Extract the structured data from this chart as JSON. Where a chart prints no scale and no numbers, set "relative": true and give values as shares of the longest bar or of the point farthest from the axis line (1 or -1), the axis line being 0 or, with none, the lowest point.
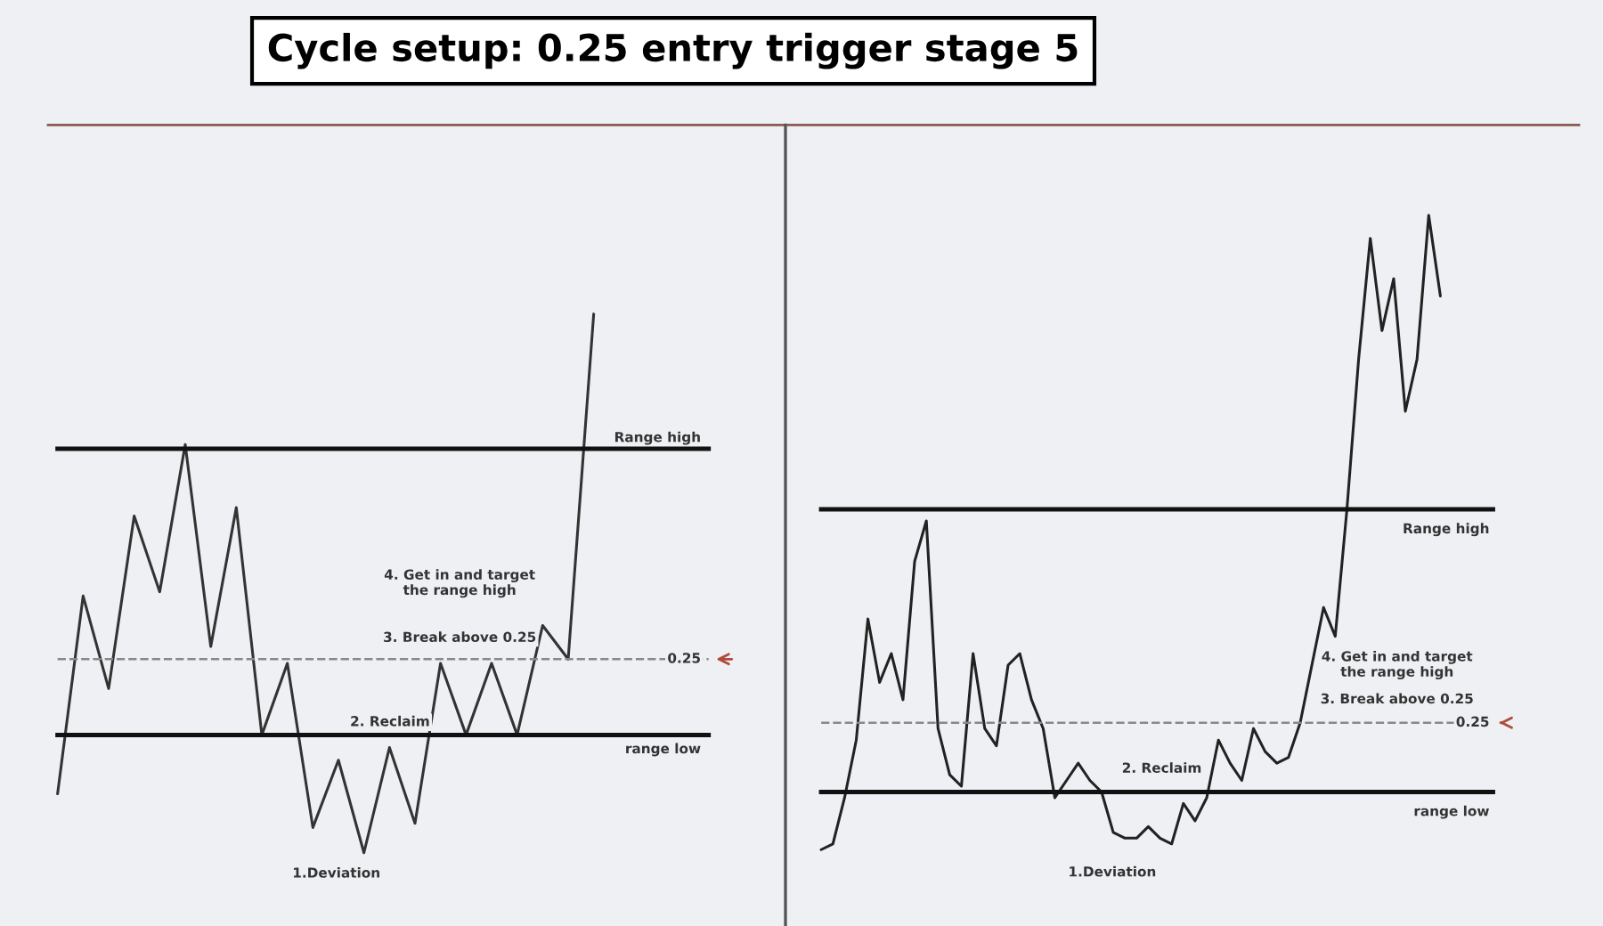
{
  "chart_data": [
    {
      "type": "line",
      "title": "Cycle setup: 0.25 entry trigger stage 5",
      "relative": true,
      "tick_labels": false,
      "marker": "none",
      "line_style": "solid",
      "categories": [
        null,
        null,
        null,
        null,
        null,
        null,
        null,
        null,
        null,
        null,
        null,
        null,
        null,
        null,
        null,
        null,
        null,
        null,
        null,
        null,
        null,
        null
      ],
      "series": [
        {
          "color": "#333333",
          "values": [
            -0.14,
            0.33,
            0.11,
            0.52,
            0.34,
            0.69,
            0.21,
            0.54,
            0.0,
            0.17,
            -0.22,
            -0.06,
            -0.28,
            -0.03,
            -0.21,
            0.17,
            0.0,
            0.17,
            0.0,
            0.26,
            0.18,
            1.0
          ]
        }
      ],
      "ref_lines": [
        {
          "axis": "y",
          "value": 0.68,
          "label": "Range high",
          "color": "#111111",
          "line_style": "solid"
        },
        {
          "axis": "y",
          "value": 0,
          "label": "range low",
          "color": "#111111",
          "line_style": "solid"
        },
        {
          "axis": "y",
          "value": 0.18,
          "color": "#888888",
          "line_style": "dashed"
        }
      ],
      "annotations": [
        "1.Deviation",
        "2. Reclaim",
        "3. Break above 0.25",
        "4. Get in and target\nthe range high",
        "0.25"
      ]
    },
    {
      "type": "line",
      "relative": true,
      "tick_labels": false,
      "marker": "none",
      "line_style": "solid",
      "categories": [
        null,
        null,
        null,
        null,
        null,
        null,
        null,
        null,
        null,
        null,
        null,
        null,
        null,
        null,
        null,
        null,
        null,
        null,
        null,
        null,
        null,
        null,
        null,
        null,
        null,
        null,
        null,
        null,
        null,
        null,
        null,
        null,
        null,
        null,
        null,
        null,
        null,
        null,
        null,
        null,
        null,
        null,
        null,
        null,
        null,
        null,
        null,
        null,
        null,
        null,
        null,
        null,
        null,
        null
      ],
      "series": [
        {
          "color": "#222222",
          "values": [
            -0.1,
            -0.09,
            -0.01,
            0.09,
            0.3,
            0.19,
            0.24,
            0.16,
            0.4,
            0.47,
            0.11,
            0.03,
            0.01,
            0.24,
            0.11,
            0.08,
            0.22,
            0.24,
            0.16,
            0.11,
            -0.01,
            0.02,
            0.05,
            0.02,
            0.0,
            -0.07,
            -0.08,
            -0.08,
            -0.06,
            -0.08,
            -0.09,
            -0.02,
            -0.05,
            -0.01,
            0.09,
            0.05,
            0.02,
            0.11,
            0.07,
            0.05,
            0.06,
            0.12,
            0.22,
            0.32,
            0.27,
            0.49,
            0.75,
            0.96,
            0.8,
            0.89,
            0.66,
            0.75,
            1.0,
            0.86
          ]
        }
      ],
      "ref_lines": [
        {
          "axis": "y",
          "value": 0.49,
          "label": "Range high",
          "color": "#111111",
          "line_style": "solid"
        },
        {
          "axis": "y",
          "value": 0,
          "label": "range low",
          "color": "#111111",
          "line_style": "solid"
        },
        {
          "axis": "y",
          "value": 0.12,
          "color": "#888888",
          "line_style": "dashed"
        }
      ],
      "annotations": [
        "1.Deviation",
        "2. Reclaim",
        "3. Break above 0.25",
        "4. Get in and target\nthe range high",
        "0.25"
      ]
    }
  ]
}
